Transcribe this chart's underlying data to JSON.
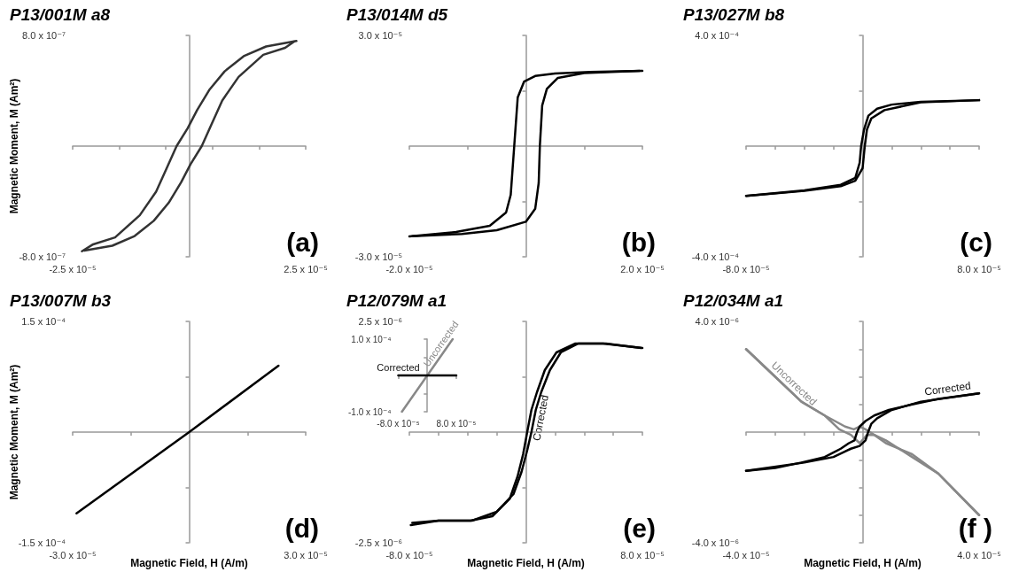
{
  "chart_data": [
    {
      "type": "line",
      "title": "P13/001M a8",
      "ylabel": "Magnetic Moment, M (Am²)",
      "xlim": [
        -2.5e-05,
        2.5e-05
      ],
      "ylim": [
        -8e-07,
        8e-07
      ],
      "xticks": [
        {
          "value": -2.5e-05,
          "label": "-2.5 x 10⁻⁵"
        },
        {
          "value": -1.5e-05,
          "label": null
        },
        {
          "value": -5e-06,
          "label": null
        },
        {
          "value": 5e-06,
          "label": null
        },
        {
          "value": 1.5e-05,
          "label": null
        },
        {
          "value": 2.5e-05,
          "label": "2.5 x 10⁻⁵"
        }
      ],
      "yticks": [
        {
          "value": -8e-07,
          "label": "-8.0 x 10⁻⁷"
        },
        {
          "value": 8e-07,
          "label": "8.0 x 10⁻⁷"
        }
      ],
      "series": [
        {
          "color": "#333333",
          "x": [
            2.3e-05,
            1.65e-05,
            1.17e-05,
            7.6e-06,
            4.4e-06,
            1.7e-06,
            -3e-07,
            -2.7e-06,
            -4.7e-06,
            -7.1e-06,
            -1.06e-05,
            -1.59e-05,
            -2.06e-05,
            -2.3e-05
          ],
          "values": [
            7.6e-07,
            7.2e-07,
            6.5e-07,
            5.4e-07,
            4.1e-07,
            2.6e-07,
            1.3e-07,
            0,
            -1.5e-07,
            -3.3e-07,
            -5e-07,
            -6.6e-07,
            -7.1e-07,
            -7.6e-07
          ]
        },
        {
          "color": "#333333",
          "x": [
            -2.25e-05,
            -1.65e-05,
            -1.17e-05,
            -7.6e-06,
            -4.4e-06,
            -1.7e-06,
            3e-07,
            2.7e-06,
            4.7e-06,
            7.1e-06,
            1.06e-05,
            1.59e-05,
            2.06e-05,
            2.25e-05
          ],
          "values": [
            -7.55e-07,
            -7.2e-07,
            -6.5e-07,
            -5.4e-07,
            -4.1e-07,
            -2.6e-07,
            -1.3e-07,
            0,
            1.5e-07,
            3.3e-07,
            5e-07,
            6.6e-07,
            7.1e-07,
            7.55e-07
          ]
        }
      ],
      "annotations": [
        "(a)"
      ]
    },
    {
      "type": "line",
      "title": "P13/014M d5",
      "xlim": [
        -2e-05,
        2e-05
      ],
      "ylim": [
        -3e-05,
        3e-05
      ],
      "xticks": [
        {
          "value": -2e-05,
          "label": "-2.0 x 10⁻⁵"
        },
        {
          "value": -1e-05,
          "label": null
        },
        {
          "value": 1e-05,
          "label": null
        },
        {
          "value": 2e-05,
          "label": "2.0 x 10⁻⁵"
        }
      ],
      "yticks": [
        {
          "value": -3e-05,
          "label": "-3.0 x 10⁻⁵"
        },
        {
          "value": -1.5e-05,
          "label": null
        },
        {
          "value": 1.5e-05,
          "label": null
        },
        {
          "value": 3e-05,
          "label": "3.0 x 10⁻⁵"
        }
      ],
      "series": [
        {
          "color": "#000000",
          "x": [
            2e-05,
            1.1e-05,
            5e-06,
            1.6e-06,
            -3e-07,
            -1.4e-06,
            -2e-06,
            -2.6e-06,
            -3.4e-06,
            -6.2e-06,
            -1.2e-05,
            -2e-05
          ],
          "values": [
            2.04e-05,
            2.01e-05,
            1.97e-05,
            1.9e-05,
            1.75e-05,
            1.32e-05,
            0,
            -1.32e-05,
            -1.8e-05,
            -2.16e-05,
            -2.33e-05,
            -2.45e-05
          ]
        },
        {
          "color": "#000000",
          "x": [
            -1.95e-05,
            -1.1e-05,
            -5e-06,
            0,
            1.6e-06,
            2.2e-06,
            2.4e-06,
            2.8e-06,
            3.6e-06,
            5.5e-06,
            1e-05,
            1.95e-05
          ],
          "values": [
            -2.44e-05,
            -2.38e-05,
            -2.28e-05,
            -2.05e-05,
            -1.7e-05,
            -1e-05,
            0,
            1.1e-05,
            1.55e-05,
            1.85e-05,
            1.98e-05,
            2.04e-05
          ]
        }
      ],
      "annotations": [
        "(b)"
      ]
    },
    {
      "type": "line",
      "title": "P13/027M b8",
      "xlim": [
        -8e-05,
        8e-05
      ],
      "ylim": [
        -0.0004,
        0.0004
      ],
      "xticks": [
        {
          "value": -8e-05,
          "label": "-8.0 x 10⁻⁵"
        },
        {
          "value": -6e-05,
          "label": null
        },
        {
          "value": -4e-05,
          "label": null
        },
        {
          "value": -2e-05,
          "label": null
        },
        {
          "value": 2e-05,
          "label": null
        },
        {
          "value": 4e-05,
          "label": null
        },
        {
          "value": 6e-05,
          "label": null
        },
        {
          "value": 8e-05,
          "label": "8.0 x 10⁻⁵"
        }
      ],
      "yticks": [
        {
          "value": -0.0004,
          "label": "-4.0 x 10⁻⁴"
        },
        {
          "value": -0.0002,
          "label": null
        },
        {
          "value": 0.0002,
          "label": null
        },
        {
          "value": 0.0004,
          "label": "4.0 x 10⁻⁴"
        }
      ],
      "series": [
        {
          "color": "#000000",
          "x": [
            8e-05,
            4e-05,
            2e-05,
            1e-05,
            4e-06,
            1e-06,
            -1e-06,
            -2e-06,
            -5e-06,
            -1.5e-05,
            -4e-05,
            -8e-05
          ],
          "values": [
            0.000166,
            0.00016,
            0.00015,
            0.000135,
            0.00011,
            6e-05,
            0,
            -6e-05,
            -0.000115,
            -0.00014,
            -0.00016,
            -0.00018
          ]
        },
        {
          "color": "#000000",
          "x": [
            -8e-05,
            -4e-05,
            -1.5e-05,
            -5e-06,
            0,
            1.5e-06,
            3e-06,
            6e-06,
            1.5e-05,
            4e-05,
            8e-05
          ],
          "values": [
            -0.00018,
            -0.000162,
            -0.000145,
            -0.000125,
            -8e-05,
            0,
            6e-05,
            0.0001,
            0.00013,
            0.000158,
            0.000166
          ]
        }
      ],
      "annotations": [
        "(c)"
      ]
    },
    {
      "type": "line",
      "title": "P13/007M b3",
      "xlabel": "Magnetic Field, H (A/m)",
      "ylabel": "Magnetic Moment, M (Am²)",
      "xlim": [
        -3e-05,
        3e-05
      ],
      "ylim": [
        -0.00015,
        0.00015
      ],
      "xticks": [
        {
          "value": -3e-05,
          "label": "-3.0 x 10⁻⁵"
        },
        {
          "value": -1.5e-05,
          "label": null
        },
        {
          "value": 1.5e-05,
          "label": null
        },
        {
          "value": 3e-05,
          "label": "3.0 x 10⁻⁵"
        }
      ],
      "yticks": [
        {
          "value": -0.00015,
          "label": "-1.5 x 10⁻⁴"
        },
        {
          "value": -7.5e-05,
          "label": null
        },
        {
          "value": 7.5e-05,
          "label": null
        },
        {
          "value": 0.00015,
          "label": "1.5 x 10⁻⁴"
        }
      ],
      "series": [
        {
          "color": "#000000",
          "x": [
            -2.9e-05,
            0,
            2.3e-05
          ],
          "values": [
            -0.00011,
            0,
            9e-05
          ]
        }
      ],
      "annotations": [
        "(d)"
      ]
    },
    {
      "type": "line",
      "title": "P12/079M a1",
      "xlabel": "Magnetic Field, H (A/m)",
      "xlim": [
        -8e-05,
        8e-05
      ],
      "ylim": [
        -2.5e-06,
        2.5e-06
      ],
      "xticks": [
        {
          "value": -8e-05,
          "label": "-8.0 x 10⁻⁵"
        },
        {
          "value": -6e-05,
          "label": null
        },
        {
          "value": -4e-05,
          "label": null
        },
        {
          "value": -2e-05,
          "label": null
        },
        {
          "value": 2e-05,
          "label": null
        },
        {
          "value": 4e-05,
          "label": null
        },
        {
          "value": 6e-05,
          "label": null
        },
        {
          "value": 8e-05,
          "label": "8.0 x 10⁻⁵"
        }
      ],
      "yticks": [
        {
          "value": -2.5e-06,
          "label": "-2.5 x 10⁻⁶"
        },
        {
          "value": -1.25e-06,
          "label": null
        },
        {
          "value": 1.25e-06,
          "label": null
        },
        {
          "value": 2.5e-06,
          "label": "2.5 x 10⁻⁶"
        }
      ],
      "series": [
        {
          "name": "Corrected",
          "color": "#000000",
          "x": [
            8e-05,
            5.3e-05,
            3.4e-05,
            2.1e-05,
            1.3e-05,
            7.6e-06,
            3.8e-06,
            9e-07,
            -1.9e-06,
            -5.7e-06,
            -1.1e-05,
            -2.3e-05,
            -3.8e-05,
            -6e-05,
            -7.9e-05
          ],
          "values": [
            1.9e-06,
            2e-06,
            2e-06,
            1.8e-06,
            1.4e-06,
            9e-07,
            5e-07,
            0,
            -5e-07,
            -1e-06,
            -1.5e-06,
            -1.9e-06,
            -2e-06,
            -2e-06,
            -2.1e-06
          ]
        },
        {
          "color": "#000000",
          "x": [
            -7.8e-05,
            -6e-05,
            -3.7e-05,
            -2e-05,
            -8.5e-06,
            -3e-06,
            1e-06,
            3.8e-06,
            6.8e-06,
            1.05e-05,
            1.65e-05,
            2.4e-05,
            3.6e-05,
            5.5e-05,
            7.9e-05
          ],
          "values": [
            -2.05e-06,
            -2e-06,
            -2e-06,
            -1.8e-06,
            -1.4e-06,
            -9e-07,
            -4e-07,
            0,
            5e-07,
            9e-07,
            1.4e-06,
            1.8e-06,
            2e-06,
            2e-06,
            1.9e-06
          ]
        }
      ],
      "annotations": [
        "(e)"
      ]
    },
    {
      "type": "line",
      "xlim": [
        -8e-05,
        8e-05
      ],
      "ylim": [
        -0.0001,
        0.0001
      ],
      "xticks": [
        {
          "value": -8e-05,
          "label": "-8.0 x 10⁻⁵"
        },
        {
          "value": 8e-05,
          "label": "8.0 x 10⁻⁵"
        }
      ],
      "yticks": [
        {
          "value": -0.0001,
          "label": "-1.0 x 10⁻⁴"
        },
        {
          "value": -5e-05,
          "label": null
        },
        {
          "value": 5e-05,
          "label": null
        },
        {
          "value": 0.0001,
          "label": "1.0 x 10⁻⁴"
        }
      ],
      "series": [
        {
          "name": "Uncorrected",
          "color": "#888888",
          "x": [
            -7e-05,
            7e-05
          ],
          "values": [
            -0.0001,
            0.0001
          ]
        },
        {
          "name": "Corrected",
          "color": "#000000",
          "x": [
            -8e-05,
            8e-05
          ],
          "values": [
            0,
            0
          ]
        }
      ]
    },
    {
      "type": "line",
      "title": "P12/034M a1",
      "xlabel": "Magnetic Field, H (A/m)",
      "xlim": [
        -4e-05,
        4e-05
      ],
      "ylim": [
        -4e-06,
        4e-06
      ],
      "xticks": [
        {
          "value": -4e-05,
          "label": "-4.0 x 10⁻⁵"
        },
        {
          "value": -3e-05,
          "label": null
        },
        {
          "value": -2e-05,
          "label": null
        },
        {
          "value": -1e-05,
          "label": null
        },
        {
          "value": 1e-05,
          "label": null
        },
        {
          "value": 2e-05,
          "label": null
        },
        {
          "value": 3e-05,
          "label": null
        },
        {
          "value": 4e-05,
          "label": "4.0 x 10⁻⁵"
        }
      ],
      "yticks": [
        {
          "value": -4e-06,
          "label": "-4.0 x 10⁻⁶"
        },
        {
          "value": -3e-06,
          "label": null
        },
        {
          "value": -2e-06,
          "label": null
        },
        {
          "value": -1e-06,
          "label": null
        },
        {
          "value": 1e-06,
          "label": null
        },
        {
          "value": 2e-06,
          "label": null
        },
        {
          "value": 3e-06,
          "label": null
        },
        {
          "value": 4e-06,
          "label": "4.0 x 10⁻⁶"
        }
      ],
      "series": [
        {
          "name": "Uncorrected",
          "color": "#888888",
          "x": [
            -4e-05,
            -3e-05,
            -2.1e-05,
            -1.3e-05,
            -6e-06,
            -3e-06,
            -1e-06,
            1e-06,
            4e-06,
            8e-06,
            1.7e-05,
            2.6e-05,
            4e-05
          ],
          "values": [
            3e-06,
            2e-06,
            1.1e-06,
            6e-07,
            2e-07,
            1e-07,
            2e-07,
            1e-07,
            -1e-07,
            -4e-07,
            -8e-07,
            -1.5e-06,
            -3e-06
          ]
        },
        {
          "color": "#888888",
          "x": [
            4e-05,
            2.6e-05,
            1.7e-05,
            8e-06,
            4e-06,
            1.5e-06,
            -1e-06,
            -4e-06,
            -8e-06,
            -1.3e-05,
            -2.1e-05,
            -3e-05,
            -4e-05
          ],
          "values": [
            -3e-06,
            -1.5e-06,
            -9e-07,
            -3e-07,
            -1e-07,
            -1e-07,
            -4e-07,
            -1e-07,
            1e-07,
            6e-07,
            1.1e-06,
            2e-06,
            3e-06
          ]
        },
        {
          "name": "Corrected",
          "color": "#000000",
          "x": [
            4e-05,
            2.6e-05,
            1.7e-05,
            9e-06,
            4e-06,
            1e-06,
            -1e-06,
            -1.9e-06,
            -2.8e-06,
            -4.7e-06,
            -7.5e-06,
            -1.3e-05,
            -2.1e-05,
            -3e-05,
            -4e-05
          ],
          "values": [
            1.4e-06,
            1.2e-06,
            1e-06,
            8e-07,
            6e-07,
            4e-07,
            2e-07,
            0,
            -3e-07,
            -4e-07,
            -6e-07,
            -9e-07,
            -1.1e-06,
            -1.3e-06,
            -1.4e-06
          ]
        },
        {
          "color": "#000000",
          "x": [
            -4e-05,
            -2e-05,
            -1e-05,
            -4e-06,
            -1e-06,
            1e-06,
            1.9e-06,
            3e-06,
            5e-06,
            1e-05,
            2e-05,
            4e-05
          ],
          "values": [
            -1.4e-06,
            -1.1e-06,
            -9e-07,
            -6e-07,
            -5e-07,
            -3e-07,
            0,
            3e-07,
            5e-07,
            8e-07,
            1.1e-06,
            1.4e-06
          ]
        }
      ],
      "annotations": [
        "(f )"
      ]
    }
  ]
}
